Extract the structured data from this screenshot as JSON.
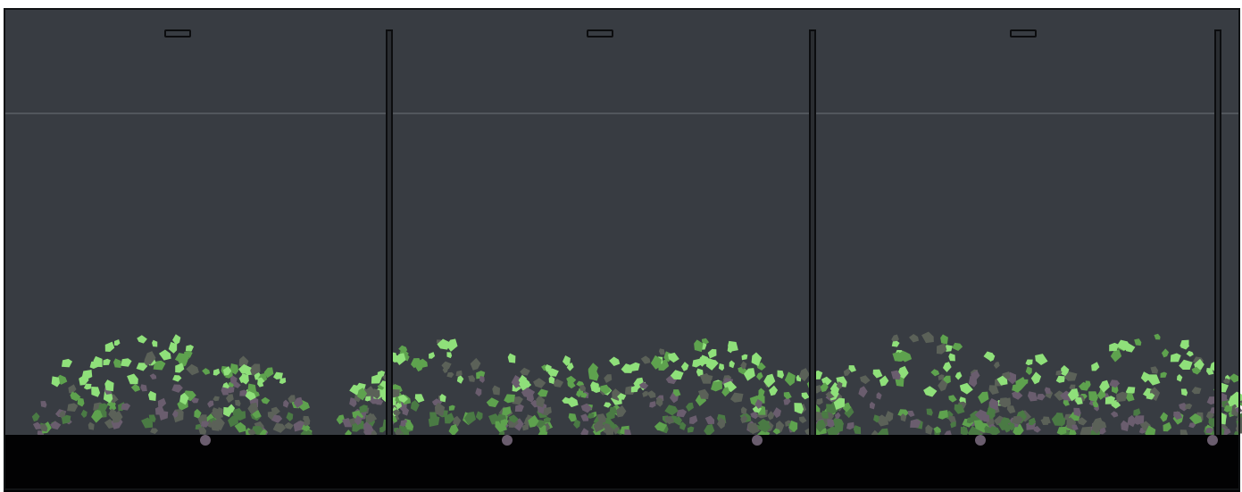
{
  "scene": {
    "type": "side-view game level",
    "colors": {
      "sky": "#383c42",
      "ground": "#020203",
      "horizon_line": "#5a6066",
      "pole_fill": "#2a2d31",
      "pole_outline": "#0c0d0f",
      "leaf_bright": "#8fe07a",
      "leaf_mid": "#5ea24e",
      "leaf_dark": "#4a7a44",
      "leaf_gray": "#5b6158",
      "leaf_purple": "#6a5d6e"
    },
    "icons": [
      "pole-post",
      "pole-cap-marker",
      "bush-foliage"
    ]
  }
}
